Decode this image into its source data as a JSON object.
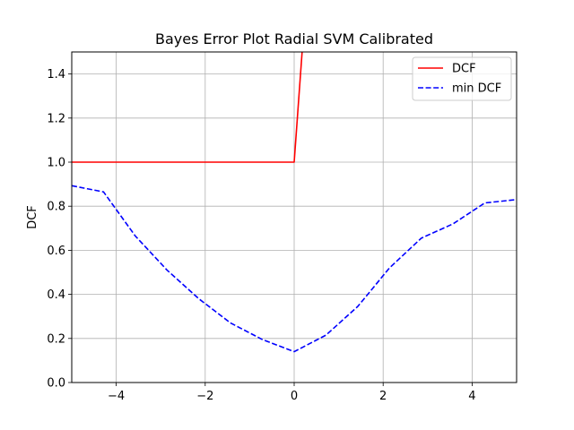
{
  "chart_data": {
    "type": "line",
    "title": "Bayes Error Plot Radial SVM Calibrated",
    "xlabel": "",
    "ylabel": "DCF",
    "xlim": [
      -5,
      5
    ],
    "ylim": [
      0,
      1.5
    ],
    "xticks": [
      -4,
      -2,
      0,
      2,
      4
    ],
    "xtick_labels": [
      "−4",
      "−2",
      "0",
      "2",
      "4"
    ],
    "yticks": [
      0.0,
      0.2,
      0.4,
      0.6,
      0.8,
      1.0,
      1.2,
      1.4
    ],
    "ytick_labels": [
      "0.0",
      "0.2",
      "0.4",
      "0.6",
      "0.8",
      "1.0",
      "1.2",
      "1.4"
    ],
    "grid": true,
    "legend_position": "top-right",
    "series": [
      {
        "name": "DCF",
        "color": "#ff0000",
        "style": "solid",
        "x": [
          -5.0,
          -4.2857,
          -3.5714,
          -2.8571,
          -2.1429,
          -1.4286,
          -0.7143,
          0.0,
          0.7143
        ],
        "y": [
          1.0,
          1.0,
          1.0,
          1.0,
          1.0,
          1.0,
          1.0,
          1.0,
          3.0
        ]
      },
      {
        "name": "min DCF",
        "color": "#0000ff",
        "style": "dashed",
        "x": [
          -5.0,
          -4.2857,
          -3.5714,
          -2.8571,
          -2.1429,
          -1.4286,
          -0.7143,
          0.0,
          0.7143,
          1.4286,
          2.1429,
          2.8571,
          3.5714,
          4.2857,
          5.0
        ],
        "y": [
          0.893,
          0.865,
          0.665,
          0.51,
          0.38,
          0.27,
          0.195,
          0.14,
          0.215,
          0.345,
          0.52,
          0.655,
          0.72,
          0.815,
          0.83
        ]
      }
    ]
  }
}
